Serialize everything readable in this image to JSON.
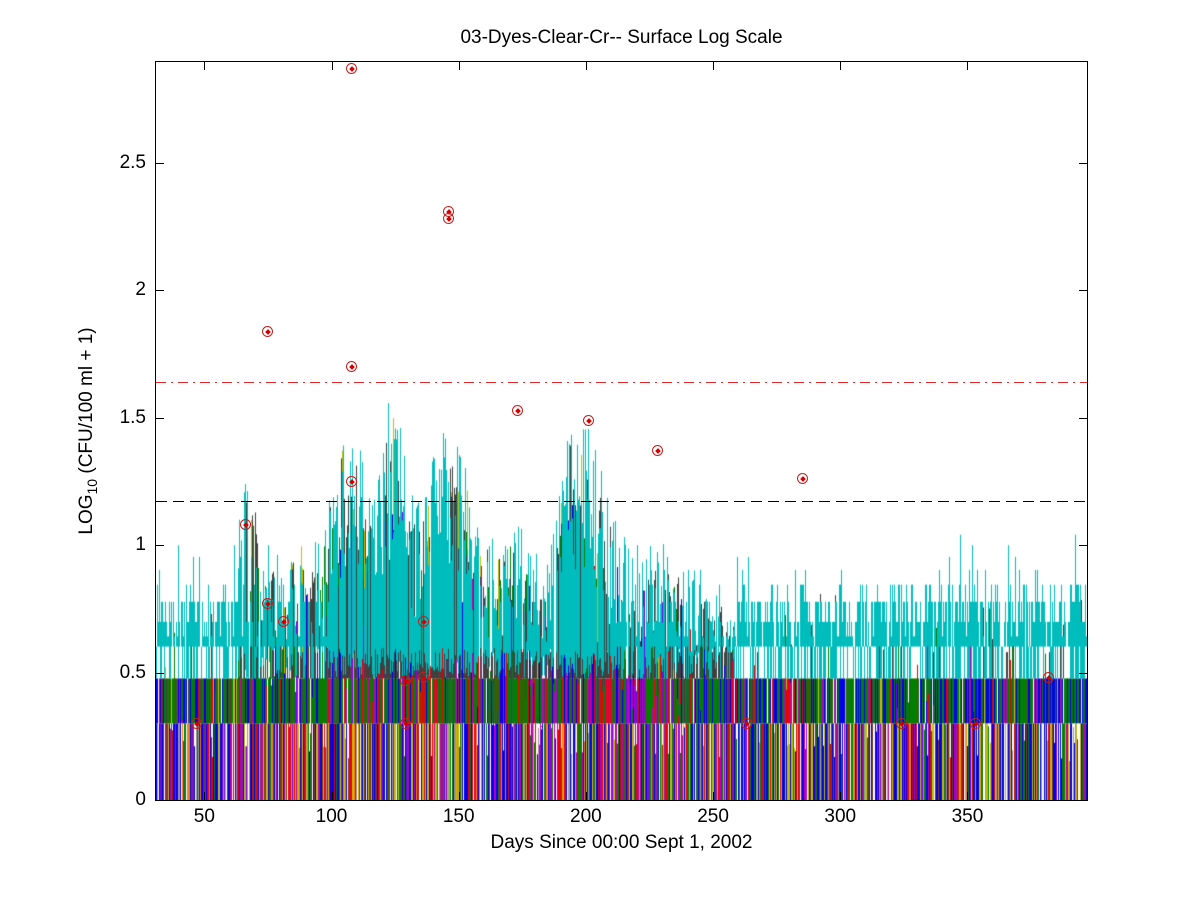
{
  "figure": {
    "background": "#FFFFFF"
  },
  "chart_data": {
    "type": "line",
    "title": "03-Dyes-Clear-Cr-- Surface Log Scale",
    "xlabel": "Days Since 00:00 Sept 1, 2002",
    "ylabel": {
      "pre": "LOG",
      "sub": "10",
      "post": " (CFU/100 ml + 1)"
    },
    "xlim": [
      31,
      397
    ],
    "ylim": [
      0,
      2.896
    ],
    "grid": false,
    "axis_color": "#000000",
    "xticks": [
      {
        "value": 50,
        "label": "50"
      },
      {
        "value": 100,
        "label": "100"
      },
      {
        "value": 150,
        "label": "150"
      },
      {
        "value": 200,
        "label": "200"
      },
      {
        "value": 250,
        "label": "250"
      },
      {
        "value": 300,
        "label": "300"
      },
      {
        "value": 350,
        "label": "350"
      }
    ],
    "yticks": [
      {
        "value": 0,
        "label": "0"
      },
      {
        "value": 0.5,
        "label": "0.5"
      },
      {
        "value": 1,
        "label": "1"
      },
      {
        "value": 1.5,
        "label": "1.5"
      },
      {
        "value": 2,
        "label": "2"
      },
      {
        "value": 2.5,
        "label": "2.5"
      }
    ],
    "reference_lines": [
      {
        "name": "single-sample-threshold",
        "y": 1.64,
        "style": "dash-dot",
        "color": "#E02A2A"
      },
      {
        "name": "geometric-mean-threshold",
        "y": 1.175,
        "style": "dashed",
        "color": "#000000"
      }
    ],
    "exceedance_points": {
      "marker": "circled-dot",
      "ring_color": "#C41E1E",
      "dot_color": "#D40000",
      "points": [
        [
          108,
          2.87
        ],
        [
          146,
          2.31
        ],
        [
          146,
          2.28
        ],
        [
          75,
          1.84
        ],
        [
          108,
          1.7
        ],
        [
          173,
          1.53
        ],
        [
          201,
          1.49
        ],
        [
          228,
          1.37
        ],
        [
          285,
          1.26
        ],
        [
          108,
          1.25
        ],
        [
          66,
          1.08
        ],
        [
          75,
          0.77
        ],
        [
          81,
          0.7
        ],
        [
          136,
          0.7
        ],
        [
          129,
          0.47
        ],
        [
          136,
          0.48
        ],
        [
          382,
          0.48
        ],
        [
          47,
          0.3
        ],
        [
          129,
          0.3
        ],
        [
          263,
          0.3
        ],
        [
          324,
          0.3
        ],
        [
          353,
          0.3
        ]
      ]
    },
    "dense_series": {
      "note": "Many overlapping station time series of LOG10(CFU/100ml+1); discrete count levels create bands at 0.30, 0.48, 0.60-0.78; storm peaks days ~100-255.",
      "seed": 20020901,
      "palette": {
        "blue": "#0000EE",
        "green": "#008000",
        "red": "#EE0000",
        "cyan": "#00BDBD",
        "magenta": "#BF00BF",
        "olive": "#BFBF00",
        "grey": "#404040",
        "lgrey": "#9C9C9C",
        "purple": "#7F00FF",
        "orange": "#FF7F00",
        "brown": "#7F3F00"
      },
      "band_levels": {
        "bottom_top": 0.301,
        "mid_top": 0.477
      },
      "cyan_base_levels": [
        [
          0.602,
          0.22
        ],
        [
          0.699,
          0.3
        ],
        [
          0.778,
          0.36
        ],
        [
          0.845,
          0.12
        ]
      ],
      "cyan_spike_levels": [
        [
          0.845,
          0.35
        ],
        [
          0.903,
          0.3
        ],
        [
          0.954,
          0.22
        ],
        [
          1.0,
          0.1
        ],
        [
          1.041,
          0.03
        ]
      ],
      "envelope": [
        [
          31,
          0.92
        ],
        [
          40,
          0.88
        ],
        [
          50,
          0.92
        ],
        [
          58,
          0.9
        ],
        [
          63,
          1.05
        ],
        [
          66,
          1.28
        ],
        [
          69,
          1.32
        ],
        [
          71,
          1.12
        ],
        [
          74,
          1.06
        ],
        [
          78,
          0.98
        ],
        [
          82,
          0.96
        ],
        [
          86,
          1.02
        ],
        [
          90,
          1.06
        ],
        [
          94,
          1.0
        ],
        [
          98,
          1.18
        ],
        [
          101,
          1.36
        ],
        [
          104,
          1.45
        ],
        [
          107,
          1.38
        ],
        [
          110,
          1.47
        ],
        [
          113,
          1.32
        ],
        [
          116,
          1.22
        ],
        [
          119,
          1.42
        ],
        [
          122,
          1.55
        ],
        [
          124,
          1.62
        ],
        [
          126,
          1.5
        ],
        [
          129,
          1.32
        ],
        [
          132,
          1.2
        ],
        [
          135,
          1.16
        ],
        [
          138,
          1.22
        ],
        [
          141,
          1.4
        ],
        [
          144,
          1.46
        ],
        [
          147,
          1.42
        ],
        [
          150,
          1.36
        ],
        [
          153,
          1.28
        ],
        [
          156,
          1.15
        ],
        [
          160,
          1.08
        ],
        [
          164,
          1.02
        ],
        [
          168,
          1.08
        ],
        [
          171,
          1.16
        ],
        [
          174,
          1.08
        ],
        [
          178,
          0.98
        ],
        [
          182,
          0.94
        ],
        [
          186,
          0.96
        ],
        [
          189,
          1.2
        ],
        [
          192,
          1.5
        ],
        [
          195,
          1.53
        ],
        [
          198,
          1.42
        ],
        [
          201,
          1.46
        ],
        [
          204,
          1.33
        ],
        [
          207,
          1.28
        ],
        [
          210,
          1.15
        ],
        [
          214,
          1.05
        ],
        [
          218,
          0.98
        ],
        [
          222,
          1.0
        ],
        [
          226,
          1.02
        ],
        [
          230,
          1.06
        ],
        [
          233,
          1.0
        ],
        [
          237,
          0.94
        ],
        [
          241,
          0.9
        ],
        [
          246,
          0.86
        ],
        [
          251,
          0.84
        ],
        [
          256,
          0.8
        ],
        [
          262,
          0.82
        ],
        [
          270,
          0.85
        ],
        [
          280,
          0.88
        ],
        [
          290,
          0.9
        ],
        [
          300,
          0.88
        ],
        [
          310,
          0.9
        ],
        [
          320,
          0.92
        ],
        [
          330,
          0.9
        ],
        [
          340,
          0.95
        ],
        [
          350,
          0.92
        ],
        [
          360,
          0.9
        ],
        [
          370,
          0.92
        ],
        [
          380,
          0.9
        ],
        [
          390,
          0.88
        ],
        [
          397,
          0.86
        ]
      ],
      "regions": [
        {
          "from": 31,
          "to": 63,
          "grey_p": 0.06,
          "green_p": 0.06,
          "olive_p": 0.02,
          "color_p": 0.04,
          "cyan": "base",
          "gap_b": 0.08,
          "gap_m": 0.06,
          "bot": [
            [
              "blue",
              0.4
            ],
            [
              "olive",
              0.12
            ],
            [
              "magenta",
              0.08
            ],
            [
              "red",
              0.08
            ],
            [
              "green",
              0.09
            ],
            [
              "purple",
              0.05
            ],
            [
              "lgrey",
              0.06
            ],
            [
              "grey",
              0.03
            ],
            [
              "orange",
              0.04
            ],
            [
              "brown",
              0.05
            ]
          ],
          "mid": [
            [
              "green",
              0.5
            ],
            [
              "blue",
              0.3
            ],
            [
              "grey",
              0.05
            ],
            [
              "red",
              0.04
            ],
            [
              "magenta",
              0.05
            ],
            [
              "olive",
              0.06
            ]
          ]
        },
        {
          "from": 63,
          "to": 99,
          "grey_p": 0.45,
          "green_p": 0.42,
          "olive_p": 0.1,
          "color_p": 0.18,
          "cyan": "mix",
          "gap_b": 0.06,
          "gap_m": 0.05,
          "bot": [
            [
              "olive",
              0.24
            ],
            [
              "blue",
              0.28
            ],
            [
              "red",
              0.09
            ],
            [
              "magenta",
              0.09
            ],
            [
              "green",
              0.1
            ],
            [
              "brown",
              0.06
            ],
            [
              "orange",
              0.05
            ],
            [
              "purple",
              0.04
            ],
            [
              "lgrey",
              0.05
            ]
          ],
          "mid": [
            [
              "green",
              0.5
            ],
            [
              "blue",
              0.2
            ],
            [
              "magenta",
              0.1
            ],
            [
              "brown",
              0.08
            ],
            [
              "red",
              0.07
            ],
            [
              "grey",
              0.05
            ]
          ]
        },
        {
          "from": 99,
          "to": 158,
          "grey_p": 0.88,
          "green_p": 0.5,
          "olive_p": 0.28,
          "color_p": 0.33,
          "cyan": "active",
          "gap_b": 0.06,
          "gap_m": 0.05,
          "bot": [
            [
              "olive",
              0.22
            ],
            [
              "blue",
              0.28
            ],
            [
              "red",
              0.11
            ],
            [
              "magenta",
              0.1
            ],
            [
              "green",
              0.1
            ],
            [
              "brown",
              0.06
            ],
            [
              "orange",
              0.05
            ],
            [
              "purple",
              0.04
            ],
            [
              "lgrey",
              0.04
            ]
          ],
          "mid": [
            [
              "green",
              0.4
            ],
            [
              "blue",
              0.15
            ],
            [
              "red",
              0.12
            ],
            [
              "magenta",
              0.12
            ],
            [
              "brown",
              0.08
            ],
            [
              "grey",
              0.08
            ],
            [
              "olive",
              0.05
            ]
          ]
        },
        {
          "from": 158,
          "to": 188,
          "grey_p": 0.72,
          "green_p": 0.4,
          "olive_p": 0.16,
          "color_p": 0.28,
          "cyan": "active",
          "gap_b": 0.06,
          "gap_m": 0.05,
          "bot": [
            [
              "blue",
              0.26
            ],
            [
              "olive",
              0.16
            ],
            [
              "red",
              0.12
            ],
            [
              "magenta",
              0.12
            ],
            [
              "green",
              0.12
            ],
            [
              "purple",
              0.06
            ],
            [
              "lgrey",
              0.06
            ],
            [
              "brown",
              0.05
            ],
            [
              "orange",
              0.05
            ]
          ],
          "mid": [
            [
              "green",
              0.35
            ],
            [
              "grey",
              0.2
            ],
            [
              "magenta",
              0.15
            ],
            [
              "red",
              0.1
            ],
            [
              "purple",
              0.08
            ],
            [
              "blue",
              0.12
            ]
          ]
        },
        {
          "from": 188,
          "to": 212,
          "grey_p": 0.88,
          "green_p": 0.45,
          "olive_p": 0.22,
          "color_p": 0.3,
          "cyan": "active",
          "gap_b": 0.06,
          "gap_m": 0.05,
          "bot": [
            [
              "blue",
              0.22
            ],
            [
              "olive",
              0.18
            ],
            [
              "red",
              0.14
            ],
            [
              "magenta",
              0.12
            ],
            [
              "green",
              0.14
            ],
            [
              "brown",
              0.08
            ],
            [
              "orange",
              0.05
            ],
            [
              "purple",
              0.04
            ],
            [
              "lgrey",
              0.03
            ]
          ],
          "mid": [
            [
              "magenta",
              0.25
            ],
            [
              "red",
              0.2
            ],
            [
              "grey",
              0.25
            ],
            [
              "green",
              0.15
            ],
            [
              "purple",
              0.08
            ],
            [
              "blue",
              0.07
            ]
          ]
        },
        {
          "from": 212,
          "to": 240,
          "grey_p": 0.85,
          "green_p": 0.3,
          "olive_p": 0.12,
          "color_p": 0.22,
          "cyan": "mix",
          "gap_b": 0.06,
          "gap_m": 0.05,
          "bot": [
            [
              "green",
              0.18
            ],
            [
              "red",
              0.16
            ],
            [
              "magenta",
              0.14
            ],
            [
              "blue",
              0.18
            ],
            [
              "olive",
              0.12
            ],
            [
              "brown",
              0.1
            ],
            [
              "orange",
              0.05
            ],
            [
              "lgrey",
              0.04
            ],
            [
              "purple",
              0.03
            ]
          ],
          "mid": [
            [
              "magenta",
              0.25
            ],
            [
              "red",
              0.18
            ],
            [
              "grey",
              0.27
            ],
            [
              "green",
              0.15
            ],
            [
              "purple",
              0.08
            ],
            [
              "blue",
              0.07
            ]
          ]
        },
        {
          "from": 240,
          "to": 258,
          "grey_p": 0.85,
          "green_p": 0.28,
          "olive_p": 0.06,
          "color_p": 0.14,
          "cyan": "mix",
          "gap_b": 0.06,
          "gap_m": 0.05,
          "bot": [
            [
              "blue",
              0.3
            ],
            [
              "olive",
              0.16
            ],
            [
              "green",
              0.16
            ],
            [
              "magenta",
              0.1
            ],
            [
              "red",
              0.1
            ],
            [
              "brown",
              0.07
            ],
            [
              "lgrey",
              0.05
            ],
            [
              "purple",
              0.03
            ],
            [
              "orange",
              0.03
            ]
          ],
          "mid": [
            [
              "grey",
              0.3
            ],
            [
              "green",
              0.3
            ],
            [
              "blue",
              0.2
            ],
            [
              "magenta",
              0.1
            ],
            [
              "red",
              0.1
            ]
          ]
        },
        {
          "from": 258,
          "to": 397,
          "grey_p": 0.08,
          "green_p": 0.05,
          "olive_p": 0.02,
          "color_p": 0.05,
          "cyan": "base",
          "gap_b": 0.08,
          "gap_m": 0.05,
          "bot": [
            [
              "blue",
              0.34
            ],
            [
              "olive",
              0.18
            ],
            [
              "magenta",
              0.09
            ],
            [
              "green",
              0.12
            ],
            [
              "red",
              0.07
            ],
            [
              "purple",
              0.04
            ],
            [
              "lgrey",
              0.06
            ],
            [
              "brown",
              0.05
            ],
            [
              "orange",
              0.05
            ]
          ],
          "mid": [
            [
              "green",
              0.45
            ],
            [
              "blue",
              0.35
            ],
            [
              "grey",
              0.06
            ],
            [
              "magenta",
              0.05
            ],
            [
              "red",
              0.05
            ],
            [
              "olive",
              0.04
            ]
          ]
        }
      ]
    }
  }
}
